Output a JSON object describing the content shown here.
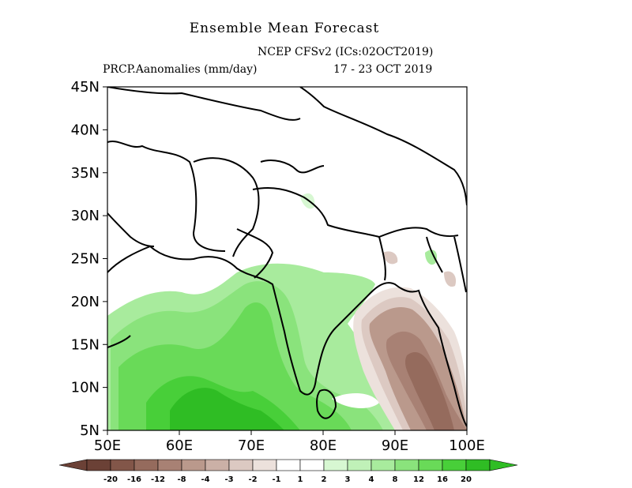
{
  "title": "Ensemble Mean Forecast",
  "model_line": "NCEP CFSv2   (ICs:02OCT2019)",
  "variable": "PRCP.Aanomalies (mm/day)",
  "period": "17 - 23 OCT 2019",
  "map": {
    "lat_range": [
      5,
      45
    ],
    "lon_range": [
      50,
      100
    ],
    "lat_ticks": [
      "45N",
      "40N",
      "35N",
      "30N",
      "25N",
      "20N",
      "15N",
      "10N",
      "5N"
    ],
    "lon_ticks": [
      "50E",
      "60E",
      "70E",
      "80E",
      "90E",
      "100E"
    ]
  },
  "colorbar": {
    "labels": [
      "-20",
      "-16",
      "-12",
      "-8",
      "-4",
      "-3",
      "-2",
      "-1",
      "1",
      "2",
      "3",
      "4",
      "8",
      "12",
      "16",
      "20"
    ],
    "colors": [
      "#6b4136",
      "#825649",
      "#956b5d",
      "#a88174",
      "#ba998c",
      "#cbb0a6",
      "#dcc9c2",
      "#ece1dc",
      "#ffffff",
      "#d7f7d2",
      "#c0f1b8",
      "#a8eb9d",
      "#8ae37c",
      "#69da58",
      "#48cf39",
      "#2fbd24"
    ]
  }
}
